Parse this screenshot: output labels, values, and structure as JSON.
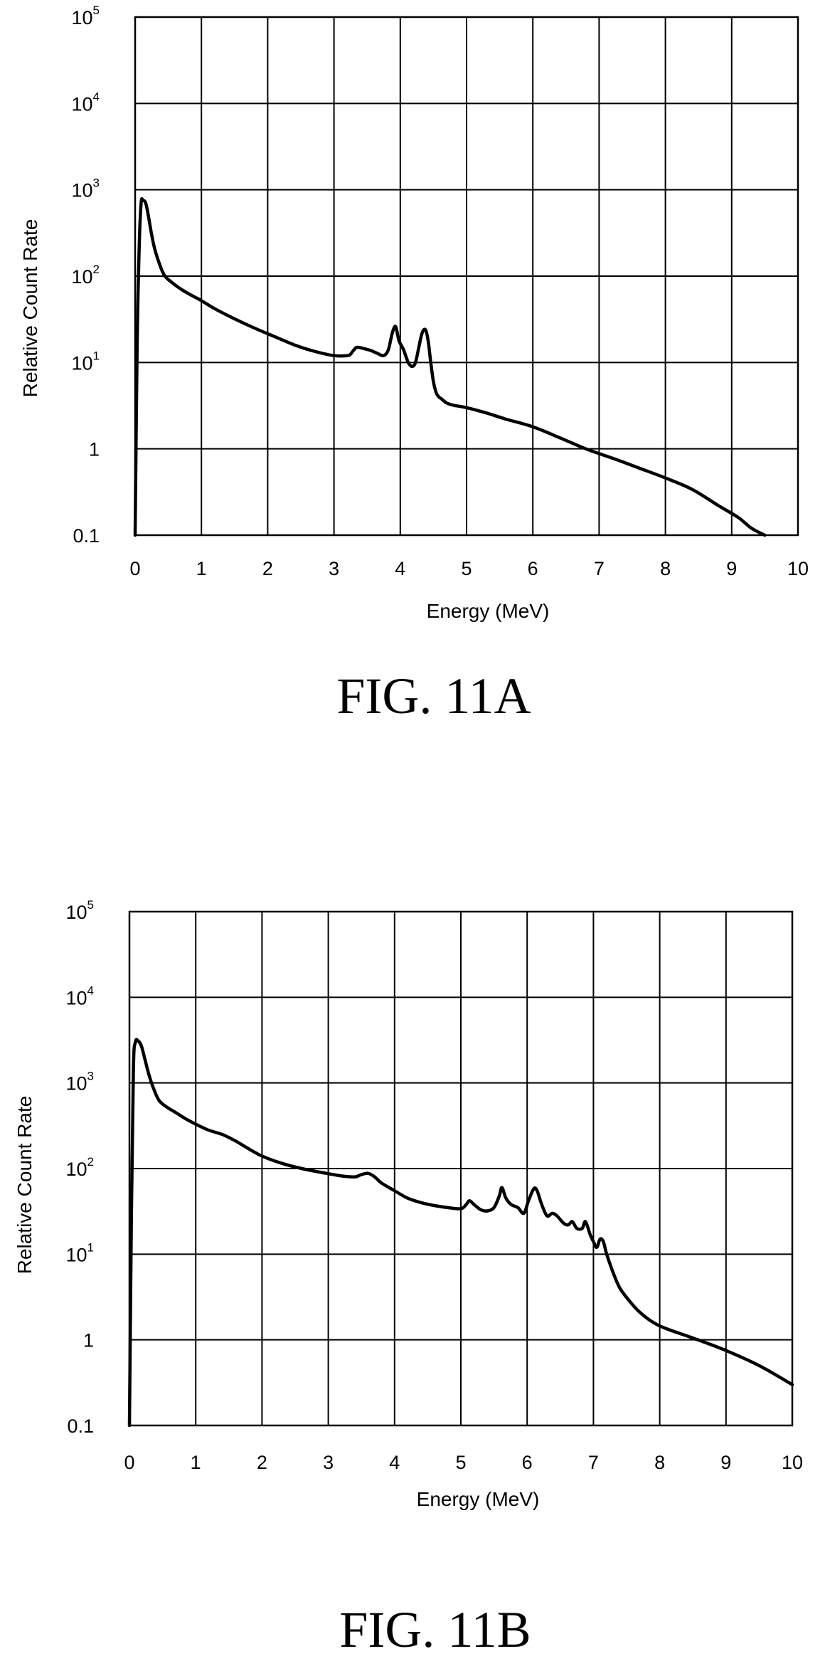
{
  "chart_data": [
    {
      "type": "line",
      "title": "FIG. 11A",
      "xlabel": "Energy (MeV)",
      "ylabel": "Relative Count Rate",
      "xlim": [
        0,
        10
      ],
      "ylim": [
        0.1,
        100000
      ],
      "yscale": "log",
      "grid": true,
      "x_ticks": [
        "0",
        "1",
        "2",
        "3",
        "4",
        "5",
        "6",
        "7",
        "8",
        "9",
        "10"
      ],
      "y_ticks": [
        {
          "base": "0.1",
          "exp": ""
        },
        {
          "base": "1",
          "exp": ""
        },
        {
          "base": "10",
          "exp": "1"
        },
        {
          "base": "10",
          "exp": "2"
        },
        {
          "base": "10",
          "exp": "3"
        },
        {
          "base": "10",
          "exp": "4"
        },
        {
          "base": "10",
          "exp": "5"
        }
      ],
      "series": [
        {
          "x": [
            0.0,
            0.03,
            0.06,
            0.09,
            0.12,
            0.16,
            0.2,
            0.25,
            0.3,
            0.38,
            0.45,
            0.55,
            0.7,
            0.85,
            1.0,
            1.2,
            1.5,
            1.8,
            2.1,
            2.4,
            2.7,
            3.0,
            3.2,
            3.25,
            3.3,
            3.35,
            3.45,
            3.55,
            3.65,
            3.75,
            3.82,
            3.88,
            3.93,
            3.98,
            4.05,
            4.12,
            4.18,
            4.23,
            4.28,
            4.33,
            4.38,
            4.42,
            4.46,
            4.5,
            4.54,
            4.58,
            4.62,
            4.7,
            4.8,
            5.0,
            5.3,
            5.6,
            6.0,
            6.4,
            6.8,
            7.2,
            7.6,
            8.0,
            8.4,
            8.8,
            9.1,
            9.3,
            9.5
          ],
          "y": [
            0.1,
            15,
            200,
            700,
            750,
            700,
            500,
            300,
            200,
            130,
            100,
            85,
            70,
            60,
            52,
            42,
            32,
            25,
            20,
            16,
            13.5,
            12,
            12,
            12.5,
            14,
            15,
            14.5,
            13.8,
            12.8,
            12,
            14,
            22,
            26,
            18,
            14,
            10,
            9,
            10,
            15,
            22,
            24,
            18,
            10,
            6,
            4.5,
            4,
            3.8,
            3.4,
            3.2,
            3,
            2.6,
            2.2,
            1.8,
            1.35,
            1.0,
            0.78,
            0.6,
            0.46,
            0.34,
            0.22,
            0.16,
            0.12,
            0.1
          ]
        }
      ]
    },
    {
      "type": "line",
      "title": "FIG. 11B",
      "xlabel": "Energy (MeV)",
      "ylabel": "Relative Count Rate",
      "xlim": [
        0,
        10
      ],
      "ylim": [
        0.1,
        100000
      ],
      "yscale": "log",
      "grid": true,
      "x_ticks": [
        "0",
        "1",
        "2",
        "3",
        "4",
        "5",
        "6",
        "7",
        "8",
        "9",
        "10"
      ],
      "y_ticks": [
        {
          "base": "0.1",
          "exp": ""
        },
        {
          "base": "1",
          "exp": ""
        },
        {
          "base": "10",
          "exp": "1"
        },
        {
          "base": "10",
          "exp": "2"
        },
        {
          "base": "10",
          "exp": "3"
        },
        {
          "base": "10",
          "exp": "4"
        },
        {
          "base": "10",
          "exp": "5"
        }
      ],
      "series": [
        {
          "x": [
            0.0,
            0.03,
            0.06,
            0.09,
            0.13,
            0.18,
            0.24,
            0.3,
            0.38,
            0.45,
            0.55,
            0.7,
            0.85,
            1.0,
            1.2,
            1.4,
            1.6,
            1.8,
            2.0,
            2.3,
            2.6,
            2.9,
            3.2,
            3.4,
            3.5,
            3.6,
            3.7,
            3.8,
            4.0,
            4.2,
            4.4,
            4.6,
            4.8,
            5.0,
            5.08,
            5.13,
            5.2,
            5.3,
            5.4,
            5.5,
            5.58,
            5.62,
            5.68,
            5.76,
            5.86,
            5.95,
            6.02,
            6.1,
            6.15,
            6.22,
            6.3,
            6.38,
            6.45,
            6.55,
            6.62,
            6.68,
            6.75,
            6.83,
            6.88,
            6.95,
            7.0,
            7.05,
            7.1,
            7.15,
            7.2,
            7.3,
            7.4,
            7.55,
            7.7,
            7.9,
            8.1,
            8.5,
            9.0,
            9.5,
            10.0
          ],
          "y": [
            0.1,
            30,
            1500,
            3000,
            3100,
            2700,
            1800,
            1200,
            800,
            620,
            530,
            450,
            380,
            330,
            280,
            250,
            210,
            170,
            140,
            115,
            100,
            90,
            82,
            80,
            85,
            88,
            80,
            68,
            55,
            45,
            40,
            37,
            35,
            34,
            38,
            42,
            38,
            33,
            32,
            35,
            48,
            60,
            45,
            38,
            35,
            30,
            42,
            58,
            55,
            38,
            28,
            30,
            28,
            23,
            22,
            24,
            20,
            20,
            24,
            17,
            14,
            12,
            15,
            14,
            10,
            6,
            4,
            2.8,
            2.1,
            1.6,
            1.35,
            1.05,
            0.75,
            0.5,
            0.3
          ]
        }
      ]
    }
  ]
}
